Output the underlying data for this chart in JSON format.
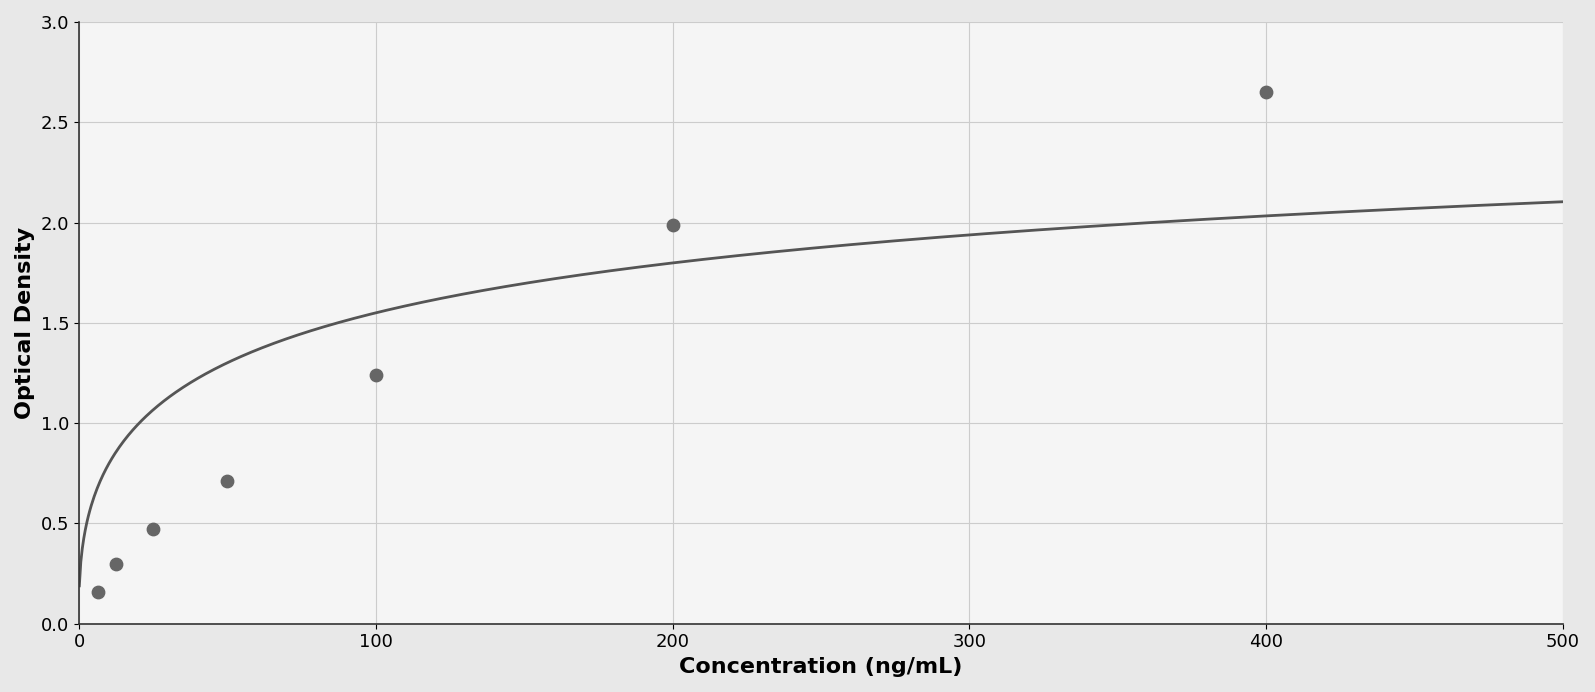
{
  "x_data": [
    6.25,
    12.5,
    25,
    50,
    100,
    200,
    400
  ],
  "y_data": [
    0.16,
    0.3,
    0.47,
    0.71,
    1.24,
    1.99,
    2.65
  ],
  "xlabel": "Concentration (ng/mL)",
  "ylabel": "Optical Density",
  "xlim": [
    0,
    500
  ],
  "ylim": [
    0,
    3
  ],
  "xticks": [
    0,
    100,
    200,
    300,
    400,
    500
  ],
  "yticks": [
    0,
    0.5,
    1.0,
    1.5,
    2.0,
    2.5,
    3.0
  ],
  "dot_color": "#666666",
  "line_color": "#555555",
  "grid_color": "#cccccc",
  "background_color": "#f5f5f5",
  "border_color": "#333333",
  "dot_size": 80,
  "line_width": 2.0,
  "xlabel_fontsize": 16,
  "ylabel_fontsize": 16,
  "tick_fontsize": 13,
  "xlabel_fontweight": "bold",
  "ylabel_fontweight": "bold"
}
